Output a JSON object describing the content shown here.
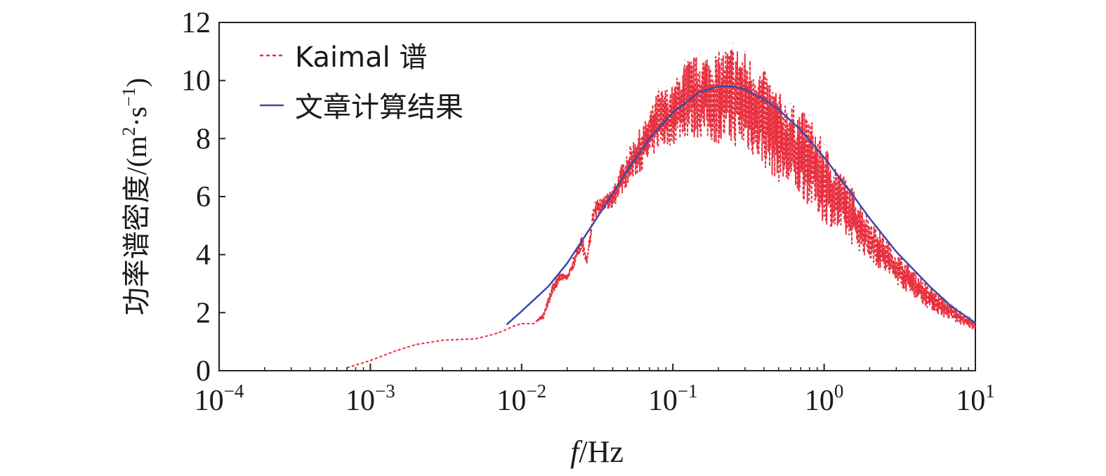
{
  "chart_data": {
    "type": "line",
    "x_scale": "log",
    "xlim": [
      0.0001,
      10
    ],
    "ylim": [
      0,
      12
    ],
    "x_ticks": [
      {
        "value": 0.0001,
        "base": "10",
        "exp": "−4"
      },
      {
        "value": 0.001,
        "base": "10",
        "exp": "−3"
      },
      {
        "value": 0.01,
        "base": "10",
        "exp": "−2"
      },
      {
        "value": 0.1,
        "base": "10",
        "exp": "−1"
      },
      {
        "value": 1,
        "base": "10",
        "exp": "0"
      },
      {
        "value": 10,
        "base": "10",
        "exp": "1"
      }
    ],
    "y_ticks": [
      0,
      2,
      4,
      6,
      8,
      10,
      12
    ],
    "y_tick_labels": [
      "0",
      "2",
      "4",
      "6",
      "8",
      "10",
      "12"
    ],
    "xlabel": {
      "italic": "f",
      "rest": "/Hz"
    },
    "ylabel": {
      "zh": "功率谱密度/(m",
      "sup1": "2",
      "mid": "·s",
      "sup2": "−1",
      "end": ")"
    },
    "legend_position": "top-left",
    "grid": false,
    "series": [
      {
        "name": "Kaimal 谱",
        "color": "#e8303f",
        "style": "dotted",
        "envelope": true,
        "x": [
          0.0007,
          0.001,
          0.0015,
          0.002,
          0.003,
          0.005,
          0.007,
          0.009,
          0.01,
          0.012,
          0.014,
          0.016,
          0.018,
          0.02,
          0.022,
          0.025,
          0.027,
          0.03,
          0.035,
          0.04,
          0.05,
          0.06,
          0.07,
          0.08,
          0.1,
          0.12,
          0.15,
          0.2,
          0.25,
          0.3,
          0.4,
          0.5,
          0.6,
          0.8,
          1.0,
          1.5,
          2,
          3,
          5,
          7,
          10
        ],
        "upper": [
          0.1,
          0.35,
          0.7,
          0.9,
          1.05,
          1.1,
          1.3,
          1.55,
          1.62,
          1.62,
          2.0,
          3.0,
          3.4,
          3.3,
          3.9,
          4.7,
          4.0,
          5.8,
          6.0,
          6.3,
          7.6,
          8.3,
          8.9,
          9.7,
          9.8,
          10.7,
          10.9,
          11.0,
          11.3,
          11.0,
          10.4,
          9.6,
          9.2,
          8.8,
          7.8,
          6.4,
          5.3,
          4.1,
          2.9,
          2.3,
          1.7
        ],
        "lower": [
          0.1,
          0.35,
          0.7,
          0.9,
          1.05,
          1.1,
          1.3,
          1.55,
          1.62,
          1.62,
          1.8,
          2.6,
          3.1,
          3.1,
          3.5,
          4.2,
          3.5,
          5.2,
          5.5,
          5.6,
          6.4,
          6.8,
          7.2,
          7.6,
          7.8,
          8.0,
          8.0,
          7.8,
          7.7,
          7.6,
          7.0,
          6.5,
          6.2,
          5.7,
          5.1,
          4.4,
          3.8,
          3.0,
          2.1,
          1.7,
          1.4
        ]
      },
      {
        "name": "文章计算结果",
        "color": "#3a4aa8",
        "style": "solid",
        "x": [
          0.008,
          0.01,
          0.015,
          0.02,
          0.03,
          0.04,
          0.05,
          0.07,
          0.1,
          0.15,
          0.2,
          0.25,
          0.3,
          0.4,
          0.5,
          0.7,
          1,
          1.5,
          2,
          3,
          5,
          7,
          10
        ],
        "y": [
          1.6,
          2.05,
          2.9,
          3.7,
          5.1,
          6.1,
          6.9,
          8.0,
          8.9,
          9.6,
          9.8,
          9.8,
          9.7,
          9.35,
          9.0,
          8.3,
          7.35,
          6.15,
          5.25,
          4.1,
          2.9,
          2.2,
          1.65
        ]
      }
    ]
  }
}
